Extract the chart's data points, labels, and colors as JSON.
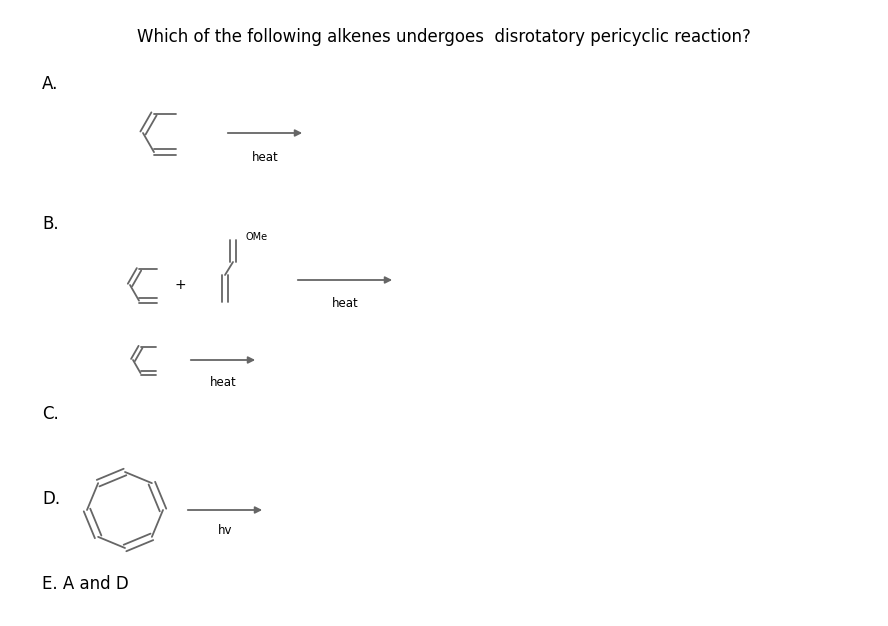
{
  "title": "Which of the following alkenes undergoes  disrotatory pericyclic reaction?",
  "title_fontsize": 12,
  "title_fontweight": "normal",
  "bg_color": "#ffffff",
  "line_color": "#666666",
  "arrow_color": "#666666",
  "text_color": "#000000",
  "label_A": "A.",
  "label_B": "B.",
  "label_C": "C.",
  "label_D": "D.",
  "label_E": "E. A and D",
  "heat_label": "heat",
  "hv_label": "hv",
  "OMe_label": "OMe",
  "plus_label": "+"
}
